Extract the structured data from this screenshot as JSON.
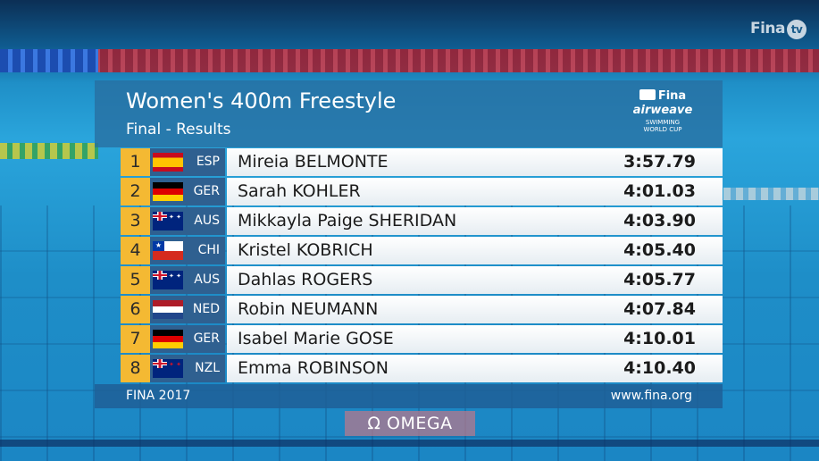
{
  "broadcast_logo": {
    "fina": "Fina",
    "tv": "tv"
  },
  "board": {
    "title": "Women's 400m Freestyle",
    "subtitle": "Final - Results",
    "sponsor": {
      "fina": "Fina",
      "airweave": "airweave",
      "world_cup_line1": "SWIMMING",
      "world_cup_line2": "WORLD CUP"
    },
    "footer_left": "FINA 2017",
    "footer_right": "www.fina.org"
  },
  "results": [
    {
      "rank": "1",
      "code": "ESP",
      "flag": "esp",
      "name": "Mireia BELMONTE",
      "time": "3:57.79"
    },
    {
      "rank": "2",
      "code": "GER",
      "flag": "ger",
      "name": "Sarah KOHLER",
      "time": "4:01.03"
    },
    {
      "rank": "3",
      "code": "AUS",
      "flag": "aus",
      "name": "Mikkayla Paige SHERIDAN",
      "time": "4:03.90"
    },
    {
      "rank": "4",
      "code": "CHI",
      "flag": "chi",
      "name": "Kristel KOBRICH",
      "time": "4:05.40"
    },
    {
      "rank": "5",
      "code": "AUS",
      "flag": "aus",
      "name": "Dahlas ROGERS",
      "time": "4:05.77"
    },
    {
      "rank": "6",
      "code": "NED",
      "flag": "ned",
      "name": "Robin NEUMANN",
      "time": "4:07.84"
    },
    {
      "rank": "7",
      "code": "GER",
      "flag": "ger",
      "name": "Isabel Marie GOSE",
      "time": "4:10.01"
    },
    {
      "rank": "8",
      "code": "NZL",
      "flag": "nzl",
      "name": "Emma ROBINSON",
      "time": "4:10.40"
    }
  ],
  "timing_sponsor": {
    "symbol": "Ω",
    "name": "OMEGA"
  },
  "colors": {
    "rank_bg": "#f4b933",
    "country_bg": "#2f6090",
    "header_bg": "#286ea0"
  }
}
